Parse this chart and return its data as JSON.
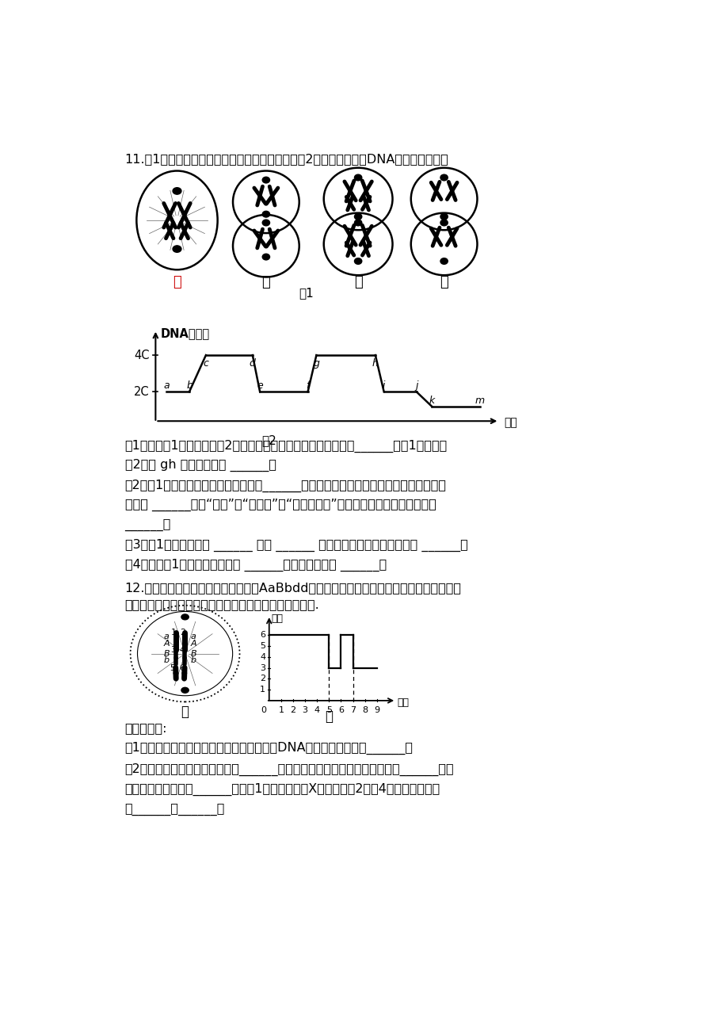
{
  "title_q11": "11.图1为某二倍体哺乳动物某器官细胞分裂图，图2为不同时期核中DNA含量变化曲线。",
  "fig1_label": "图1",
  "fig2_label": "图2",
  "cell_labels": [
    "甲",
    "乙",
    "丙",
    "丁"
  ],
  "dna_ylabel": "DNA分子数",
  "dna_xlabel": "时间",
  "dna_4c": "4C",
  "dna_2c": "2C",
  "q11_1": "（1）若将图1中的图象按图2的分裂顺序排列，则其正确的顺序为______，图1中发生在",
  "q11_1b": "图2曲线 gh 过程的图象为 ______．",
  "q11_2": "（2）图1的细胞中含有同源染色体的有______，丁细胞中染色体的互换区段内同一位点上",
  "q11_2b": "的基因 ______（填“相同”、“不相同”或“不一定相同”），该互换导致染色单体上的",
  "q11_2c": "______．",
  "q11_3": "（3）图1中乙细胞处于 ______ 分裂 ______ 期，分裂后产生的子细胞称为 ______．",
  "q11_4": "（4）依据图1图象判断该器官为 ______，判断的理由是 ______．",
  "title_q12": "12.如图甲、乙分别表示某基因组成为AaBbdd的雌性高等动物细胞分裂过程中某时期的染色",
  "title_q12b": "体基因示意图和配子形成时细胞中染色体数量变化曲线图.",
  "q12_labels_jia": "甲",
  "q12_labels_yi": "乙",
  "q12_y_label": "条数",
  "q12_x_label": "时间",
  "q12_ask": "请据图回答:",
  "q12_1": "（1）依据图乙，写出该种生物细胞分裂时，DNA数目的变化规律：______．",
  "q12_2": "（2）图甲所示细胞所处的时期是______，其分裂完成产生的子细胞的名称为______．该",
  "q12_2b": "细胞中含同源染色体______对．若1号染色体表示X染色体，则2号和4号染色体分别叫",
  "q12_2c": "做______、______．",
  "bg_color": "#ffffff"
}
